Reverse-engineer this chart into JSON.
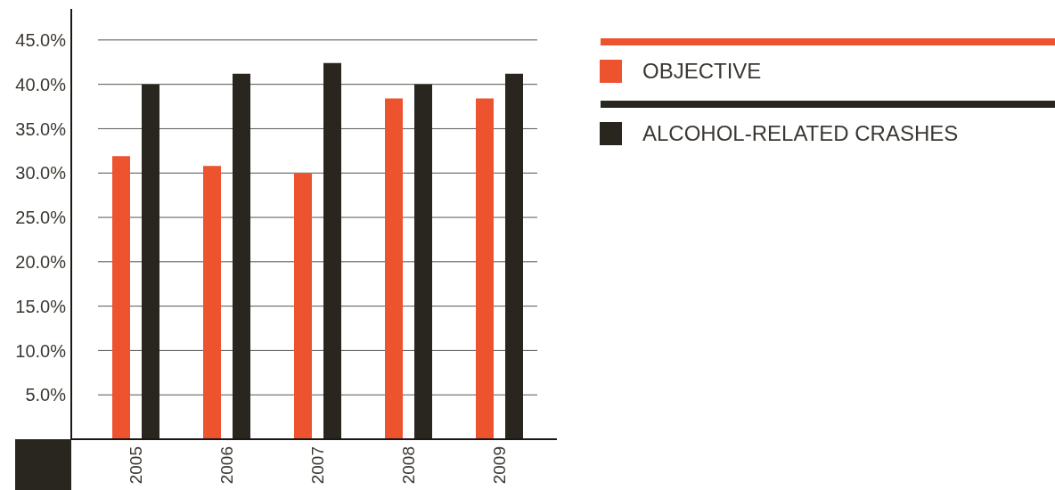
{
  "chart_data": {
    "type": "bar",
    "categories": [
      "2005",
      "2006",
      "2007",
      "2008",
      "2009"
    ],
    "series": [
      {
        "name": "OBJECTIVE",
        "color": "#ee5330",
        "values": [
          31.9,
          30.8,
          30.0,
          38.4,
          38.4
        ]
      },
      {
        "name": "ALCOHOL-RELATED CRASHES",
        "color": "#29251f",
        "values": [
          40.0,
          41.2,
          42.4,
          40.0,
          41.2
        ]
      }
    ],
    "ylim": [
      0,
      48.5
    ],
    "yticks": [
      {
        "value": 5,
        "label": "5.0%"
      },
      {
        "value": 10,
        "label": "10.0%"
      },
      {
        "value": 15,
        "label": "15.0%"
      },
      {
        "value": 20,
        "label": "20.0%"
      },
      {
        "value": 25,
        "label": "25.0%"
      },
      {
        "value": 30,
        "label": "30.0%"
      },
      {
        "value": 35,
        "label": "35.0%"
      },
      {
        "value": 40,
        "label": "40.0%"
      },
      {
        "value": 45,
        "label": "45.0%"
      }
    ],
    "grid": "y",
    "legend": "top right"
  }
}
